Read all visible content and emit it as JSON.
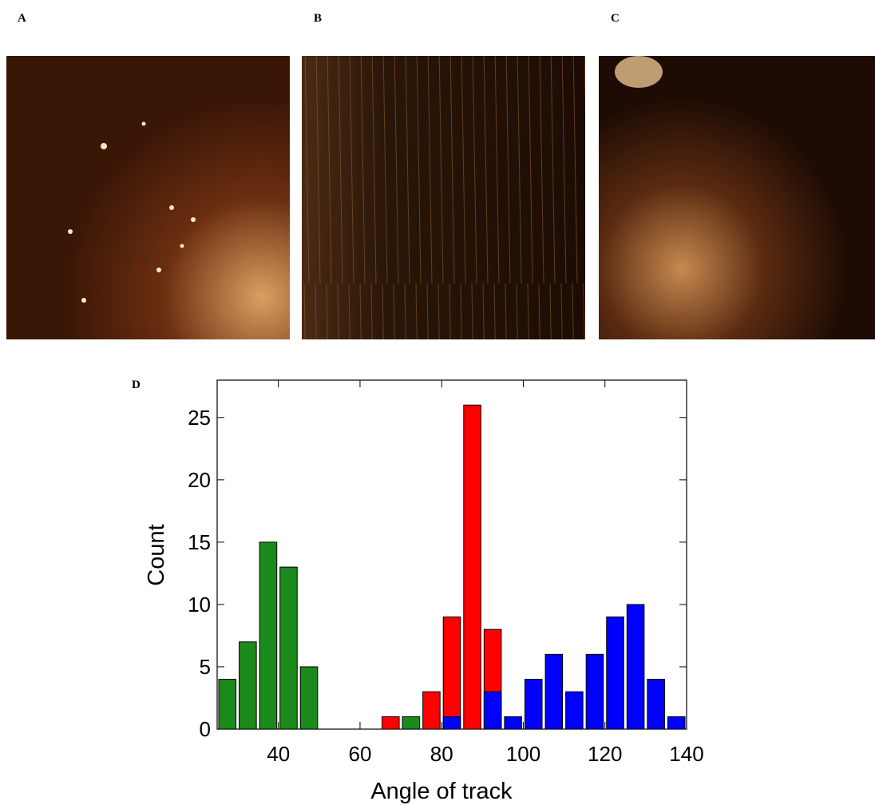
{
  "panels": [
    {
      "label": "A"
    },
    {
      "label": "B"
    },
    {
      "label": "C"
    }
  ],
  "chart_data": {
    "type": "histogram",
    "panel_label": "D",
    "x_label": "Angle of track",
    "y_label": "Count",
    "bins": [
      25,
      30,
      35,
      40,
      45,
      50,
      55,
      60,
      65,
      70,
      75,
      80,
      85,
      90,
      95,
      100,
      105,
      110,
      115,
      120,
      125,
      130,
      135,
      140
    ],
    "series": [
      {
        "color": "#1a8a1a",
        "values": [
          4,
          7,
          15,
          13,
          5,
          0,
          0,
          0,
          0,
          1,
          0,
          0,
          0,
          0,
          0,
          0,
          0,
          0,
          0,
          0,
          0,
          0,
          0
        ]
      },
      {
        "color": "#ff0000",
        "values": [
          0,
          0,
          0,
          0,
          0,
          0,
          0,
          0,
          1,
          0,
          3,
          9,
          26,
          8,
          0,
          0,
          0,
          0,
          0,
          0,
          0,
          0,
          0
        ]
      },
      {
        "color": "#0000ff",
        "values": [
          0,
          0,
          0,
          0,
          0,
          0,
          0,
          0,
          0,
          0,
          0,
          1,
          0,
          3,
          1,
          4,
          6,
          3,
          6,
          9,
          10,
          4,
          1
        ]
      }
    ],
    "xlim": [
      25,
      140
    ],
    "xticks": [
      40,
      60,
      80,
      100,
      120,
      140
    ],
    "ylim": [
      0,
      28
    ],
    "yticks": [
      0,
      5,
      10,
      15,
      20,
      25
    ]
  }
}
